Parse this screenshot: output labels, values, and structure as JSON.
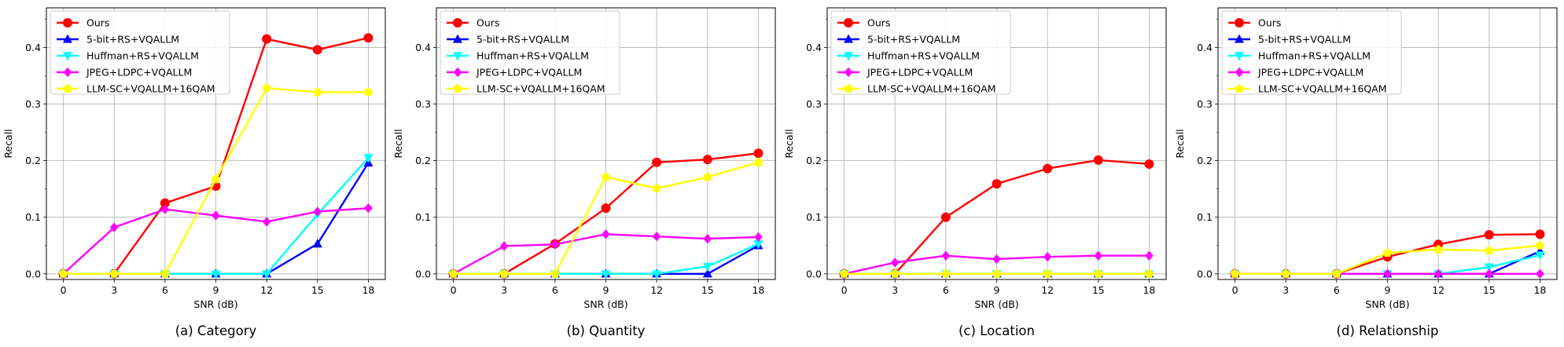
{
  "chart_data": [
    {
      "type": "line",
      "caption": "(a) Category",
      "xlabel": "SNR (dB)",
      "ylabel": "Recall",
      "x": [
        0,
        3,
        6,
        9,
        12,
        15,
        18
      ],
      "xlim": [
        -1,
        19
      ],
      "ylim": [
        -0.01,
        0.47
      ],
      "xticks": [
        "0",
        "3",
        "6",
        "9",
        "12",
        "15",
        "18"
      ],
      "yticks": [
        "0.0",
        "0.1",
        "0.2",
        "0.3",
        "0.4"
      ],
      "grid": true,
      "legend": "top-left",
      "series": [
        {
          "name": "Ours",
          "values": [
            0.0,
            0.0,
            0.125,
            0.155,
            0.415,
            0.396,
            0.417
          ]
        },
        {
          "name": "5-bit+RS+VQALLM",
          "values": [
            0.0,
            0.0,
            0.0,
            0.0,
            0.0,
            0.053,
            0.196
          ]
        },
        {
          "name": "Huffman+RS+VQALLM",
          "values": [
            0.0,
            0.0,
            0.0,
            0.0,
            0.0,
            0.105,
            0.205
          ]
        },
        {
          "name": "JPEG+LDPC+VQALLM",
          "values": [
            0.0,
            0.082,
            0.114,
            0.103,
            0.092,
            0.11,
            0.116
          ]
        },
        {
          "name": "LLM-SC+VQALLM+16QAM",
          "values": [
            0.0,
            0.0,
            0.0,
            0.167,
            0.328,
            0.321,
            0.321
          ]
        }
      ]
    },
    {
      "type": "line",
      "caption": "(b) Quantity",
      "xlabel": "SNR (dB)",
      "ylabel": "Recall",
      "x": [
        0,
        3,
        6,
        9,
        12,
        15,
        18
      ],
      "xlim": [
        -1,
        19
      ],
      "ylim": [
        -0.01,
        0.47
      ],
      "xticks": [
        "0",
        "3",
        "6",
        "9",
        "12",
        "15",
        "18"
      ],
      "yticks": [
        "0.0",
        "0.1",
        "0.2",
        "0.3",
        "0.4"
      ],
      "grid": true,
      "legend": "top-left",
      "series": [
        {
          "name": "Ours",
          "values": [
            0.0,
            0.0,
            0.053,
            0.116,
            0.197,
            0.202,
            0.213
          ]
        },
        {
          "name": "5-bit+RS+VQALLM",
          "values": [
            0.0,
            0.0,
            0.0,
            0.0,
            0.0,
            0.0,
            0.05
          ]
        },
        {
          "name": "Huffman+RS+VQALLM",
          "values": [
            0.0,
            0.0,
            0.0,
            0.0,
            0.0,
            0.013,
            0.053
          ]
        },
        {
          "name": "JPEG+LDPC+VQALLM",
          "values": [
            0.0,
            0.049,
            0.052,
            0.07,
            0.066,
            0.062,
            0.065
          ]
        },
        {
          "name": "LLM-SC+VQALLM+16QAM",
          "values": [
            0.0,
            0.0,
            0.0,
            0.171,
            0.151,
            0.171,
            0.197
          ]
        }
      ]
    },
    {
      "type": "line",
      "caption": "(c) Location",
      "xlabel": "SNR (dB)",
      "ylabel": "Recall",
      "x": [
        0,
        3,
        6,
        9,
        12,
        15,
        18
      ],
      "xlim": [
        -1,
        19
      ],
      "ylim": [
        -0.01,
        0.47
      ],
      "xticks": [
        "0",
        "3",
        "6",
        "9",
        "12",
        "15",
        "18"
      ],
      "yticks": [
        "0.0",
        "0.1",
        "0.2",
        "0.3",
        "0.4"
      ],
      "grid": true,
      "legend": "top-left",
      "series": [
        {
          "name": "Ours",
          "values": [
            0.0,
            0.0,
            0.1,
            0.159,
            0.186,
            0.201,
            0.194
          ]
        },
        {
          "name": "5-bit+RS+VQALLM",
          "values": [
            0.0,
            0.0,
            0.0,
            0.0,
            0.0,
            0.0,
            0.0
          ]
        },
        {
          "name": "Huffman+RS+VQALLM",
          "values": [
            0.0,
            0.0,
            0.0,
            0.0,
            0.0,
            0.0,
            0.0
          ]
        },
        {
          "name": "JPEG+LDPC+VQALLM",
          "values": [
            0.0,
            0.02,
            0.032,
            0.026,
            0.03,
            0.032,
            0.032
          ]
        },
        {
          "name": "LLM-SC+VQALLM+16QAM",
          "values": [
            0.0,
            0.0,
            0.0,
            0.0,
            0.0,
            0.0,
            0.0
          ]
        }
      ]
    },
    {
      "type": "line",
      "caption": "(d) Relationship",
      "xlabel": "SNR (dB)",
      "ylabel": "Recall",
      "x": [
        0,
        3,
        6,
        9,
        12,
        15,
        18
      ],
      "xlim": [
        -1,
        19
      ],
      "ylim": [
        -0.01,
        0.47
      ],
      "xticks": [
        "0",
        "3",
        "6",
        "9",
        "12",
        "15",
        "18"
      ],
      "yticks": [
        "0.0",
        "0.1",
        "0.2",
        "0.3",
        "0.4"
      ],
      "grid": true,
      "legend": "top-left",
      "series": [
        {
          "name": "Ours",
          "values": [
            0.0,
            0.0,
            0.0,
            0.03,
            0.052,
            0.069,
            0.07
          ]
        },
        {
          "name": "5-bit+RS+VQALLM",
          "values": [
            0.0,
            0.0,
            0.0,
            0.0,
            0.0,
            0.0,
            0.04
          ]
        },
        {
          "name": "Huffman+RS+VQALLM",
          "values": [
            0.0,
            0.0,
            0.0,
            0.0,
            0.0,
            0.012,
            0.033
          ]
        },
        {
          "name": "JPEG+LDPC+VQALLM",
          "values": [
            0.0,
            0.0,
            0.0,
            0.0,
            0.0,
            0.0,
            0.0
          ]
        },
        {
          "name": "LLM-SC+VQALLM+16QAM",
          "values": [
            0.0,
            0.0,
            0.0,
            0.037,
            0.043,
            0.041,
            0.05
          ]
        }
      ]
    }
  ],
  "series_style": [
    {
      "color": "#ff0000",
      "marker": "circle"
    },
    {
      "color": "#0000ff",
      "marker": "triangle-up"
    },
    {
      "color": "#00ffff",
      "marker": "triangle-down"
    },
    {
      "color": "#ff00ff",
      "marker": "diamond"
    },
    {
      "color": "#ffff00",
      "marker": "pentagon"
    }
  ]
}
